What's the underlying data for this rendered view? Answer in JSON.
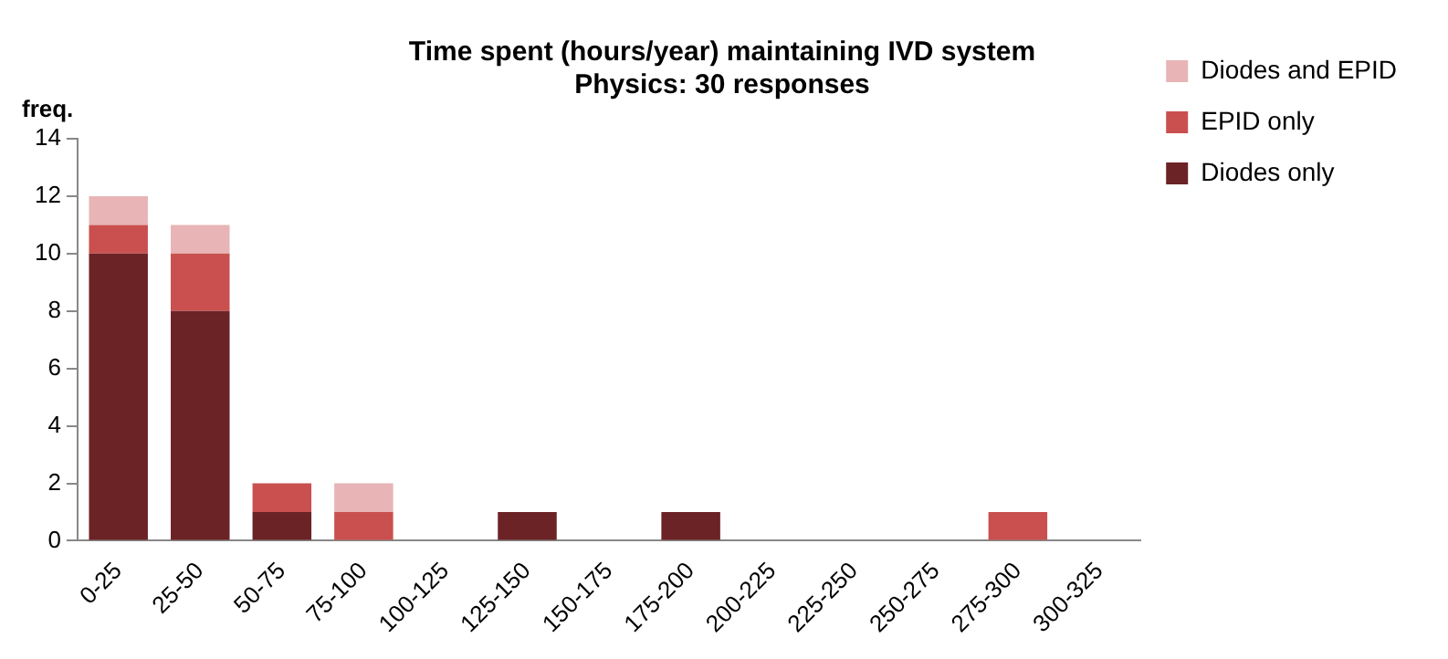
{
  "chart_data": {
    "type": "bar",
    "title": "Time spent (hours/year) maintaining IVD system",
    "subtitle": "Physics: 30 responses",
    "ylabel": "freq.",
    "categories": [
      "0-25",
      "25-50",
      "50-75",
      "75-100",
      "100-125",
      "125-150",
      "150-175",
      "175-200",
      "200-225",
      "225-250",
      "250-275",
      "275-300",
      "300-325"
    ],
    "stacked": true,
    "series": [
      {
        "name": "Diodes only",
        "color": "#6b2326",
        "values": [
          10,
          8,
          1,
          0,
          0,
          1,
          0,
          1,
          0,
          0,
          0,
          0,
          0
        ]
      },
      {
        "name": "EPID only",
        "color": "#c9504f",
        "values": [
          1,
          2,
          1,
          1,
          0,
          0,
          0,
          0,
          0,
          0,
          0,
          1,
          0
        ]
      },
      {
        "name": "Diodes and EPID",
        "color": "#e8b4b5",
        "values": [
          1,
          1,
          0,
          1,
          0,
          0,
          0,
          0,
          0,
          0,
          0,
          0,
          0
        ]
      }
    ],
    "ylim": [
      0,
      14
    ],
    "yticks": [
      0,
      2,
      4,
      6,
      8,
      10,
      12,
      14
    ],
    "grid": false,
    "legend": "top right"
  }
}
